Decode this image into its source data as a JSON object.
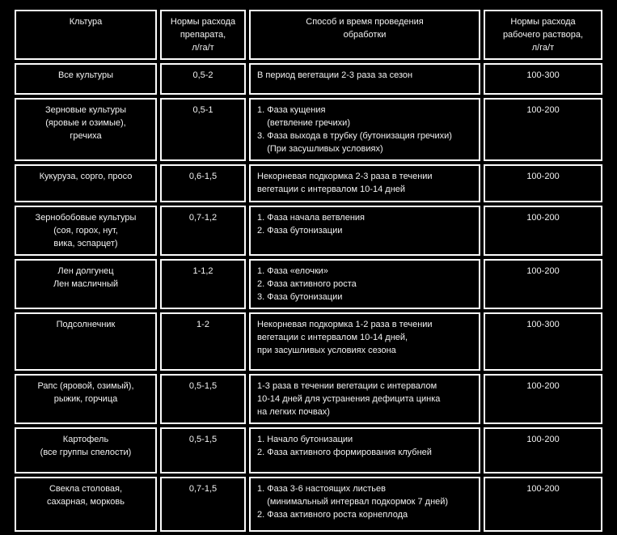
{
  "page": {
    "background_color": "#000000",
    "border_color": "#ffffff",
    "text_color": "#f2f2f2"
  },
  "table": {
    "columns": [
      {
        "label": "Кльтура"
      },
      {
        "label": "Нормы расхода\nпрепарата,\nл/га/т"
      },
      {
        "label": "Способ и время проведения\nобработки"
      },
      {
        "label": "Нормы расхода\nрабочего раствора,\nл/га/т"
      }
    ],
    "rows": [
      {
        "culture": "Все культуры",
        "rate": "0,5-2",
        "method": "В период вегетации 2-3 раза за сезон",
        "solution": "100-300"
      },
      {
        "culture": "Зерновые культуры\n(яровые и озимые),\nгречиха",
        "rate": "0,5-1",
        "method": "1. Фаза кущения\n    (ветвление гречихи)\n3. Фаза выхода в трубку (бутонизация гречихи)\n    (При засушливых условиях)",
        "solution": "100-200"
      },
      {
        "culture": "Кукуруза, сорго, просо",
        "rate": "0,6-1,5",
        "method": "Некорневая подкормка 2-3 раза в течении\nвегетации с интервалом 10-14 дней",
        "solution": "100-200"
      },
      {
        "culture": "Зернобобовые культуры\n(соя, горох, нут,\nвика, эспарцет)",
        "rate": "0,7-1,2",
        "method": "1. Фаза начала ветвления\n2. Фаза бутонизации",
        "solution": "100-200"
      },
      {
        "culture": "Лен долгунец\nЛен масличный",
        "rate": "1-1,2",
        "method": "1. Фаза «елочки»\n2. Фаза активного роста\n3. Фаза бутонизации",
        "solution": "100-200"
      },
      {
        "culture": "Подсолнечник",
        "rate": "1-2",
        "method": "Некорневая подкормка 1-2 раза в течении\nвегетации с интервалом 10-14 дней,\nпри засушливых условиях сезона",
        "solution": "100-300"
      },
      {
        "culture": "Рапс (яровой, озимый),\nрыжик, горчица",
        "rate": "0,5-1,5",
        "method": "1-3 раза в течении вегетации с интервалом\n10-14 дней для устранения дефицита цинка\nна легких почвах)",
        "solution": "100-200"
      },
      {
        "culture": "Картофель\n(все группы спелости)",
        "rate": "0,5-1,5",
        "method": "1. Начало бутонизации\n2. Фаза активного формирования клубней",
        "solution": "100-200"
      },
      {
        "culture": "Свекла столовая,\nсахарная, морковь",
        "rate": "0,7-1,5",
        "method": "1. Фаза 3-6 настоящих листьев\n    (минимальный интервал подкормок 7 дней)\n2. Фаза активного роста корнеплода",
        "solution": "100-200"
      }
    ]
  }
}
